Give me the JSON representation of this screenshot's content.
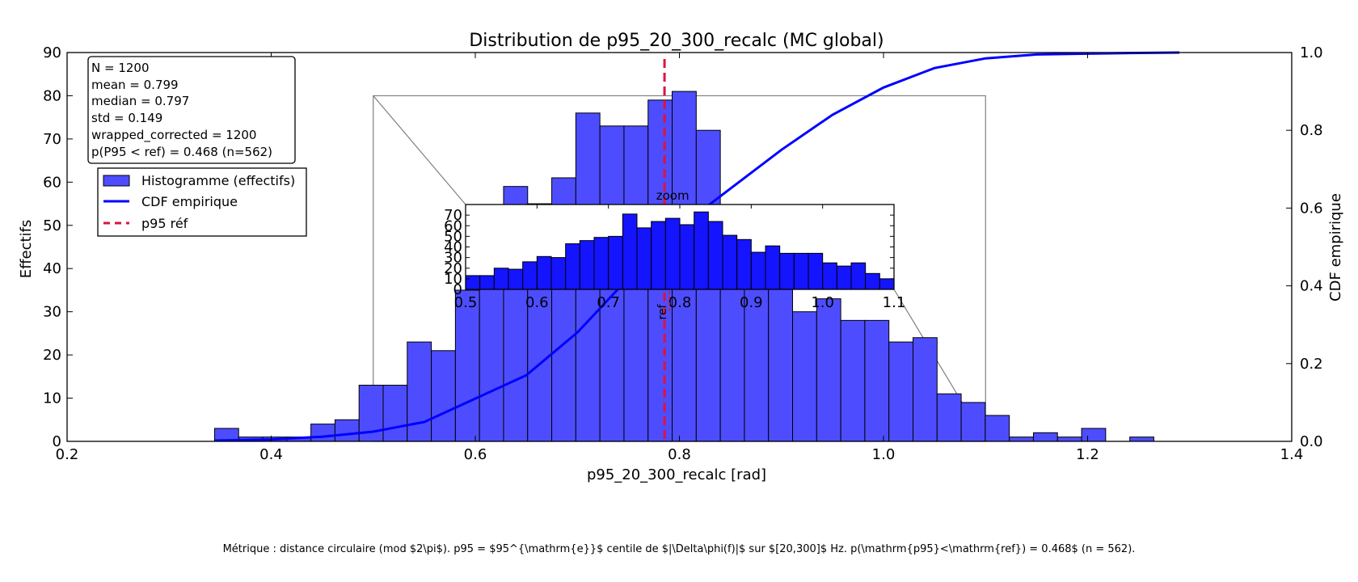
{
  "chart_data": {
    "type": "bar",
    "title": "Distribution de p95_20_300_recalc (MC global)",
    "xlabel": "p95_20_300_recalc [rad]",
    "ylabel": "Effectifs",
    "ylabel_right": "CDF empirique",
    "xlim": [
      0.2,
      1.4
    ],
    "ylim": [
      0,
      90
    ],
    "ylim_right": [
      0,
      1.0
    ],
    "xticks": [
      "0.2",
      "0.4",
      "0.6",
      "0.8",
      "1.0",
      "1.2",
      "1.4"
    ],
    "yticks": [
      "0",
      "10",
      "20",
      "30",
      "40",
      "50",
      "60",
      "70",
      "80",
      "90"
    ],
    "yticks_right": [
      "0.0",
      "0.2",
      "0.4",
      "0.6",
      "0.8",
      "1.0"
    ],
    "bin_width": 0.0236,
    "bin_start": 0.3445,
    "counts": [
      3,
      1,
      1,
      1,
      4,
      5,
      13,
      13,
      23,
      21,
      35,
      49,
      59,
      55,
      61,
      76,
      73,
      73,
      79,
      81,
      72,
      52,
      49,
      40,
      30,
      33,
      28,
      28,
      23,
      24,
      11,
      9,
      6,
      1,
      2,
      1,
      3,
      0,
      1
    ],
    "cdf": {
      "x": [
        0.345,
        0.4,
        0.45,
        0.5,
        0.55,
        0.6,
        0.65,
        0.7,
        0.75,
        0.8,
        0.85,
        0.9,
        0.95,
        1.0,
        1.05,
        1.1,
        1.15,
        1.2,
        1.25,
        1.29
      ],
      "y": [
        0.002,
        0.005,
        0.012,
        0.025,
        0.05,
        0.11,
        0.17,
        0.28,
        0.42,
        0.55,
        0.65,
        0.75,
        0.84,
        0.91,
        0.96,
        0.985,
        0.995,
        0.997,
        0.999,
        1.0
      ]
    },
    "ref_line": {
      "x": 0.7854,
      "label": "p95 réf"
    },
    "hist_color": "#4d4dff",
    "cdf_color": "#0000ff",
    "ref_color": "#dc143c",
    "legend_position": "upper-left",
    "legend": [
      {
        "label": "Histogramme (effectifs)",
        "kind": "patch",
        "color": "#4d4dff"
      },
      {
        "label": "CDF empirique",
        "kind": "line",
        "color": "#0000ff"
      },
      {
        "label": "p95 réf",
        "kind": "dashed",
        "color": "#dc143c"
      }
    ],
    "stats_box": [
      "N = 1200",
      "mean = 0.799",
      "median = 0.797",
      "std = 0.149",
      "wrapped_corrected = 1200",
      "p(P95 < ref) = 0.468 (n=562)"
    ],
    "inset": {
      "title": "zoom",
      "xlim": [
        0.5,
        1.1
      ],
      "ylim": [
        0,
        80
      ],
      "xticks": [
        "0.5",
        "0.6",
        "0.7",
        "0.8",
        "0.9",
        "1.0",
        "1.1"
      ],
      "yticks": [
        "0",
        "10",
        "20",
        "30",
        "40",
        "50",
        "60",
        "70"
      ],
      "bin_width": 0.02,
      "counts": [
        13,
        13,
        20,
        19,
        26,
        31,
        30,
        43,
        46,
        49,
        50,
        71,
        58,
        64,
        67,
        61,
        73,
        64,
        51,
        47,
        35,
        41,
        34,
        34,
        34,
        25,
        22,
        25,
        15,
        10
      ],
      "ref_label": "ref",
      "ref_x": 0.7854
    }
  },
  "footer": "Métrique : distance circulaire (mod $2\\pi$). p95 = $95^{\\mathrm{e}}$ centile de $|\\Delta\\phi(f)|$ sur $[20,300]$ Hz. p(\\mathrm{p95}<\\mathrm{ref}) = 0.468$ (n = 562)."
}
